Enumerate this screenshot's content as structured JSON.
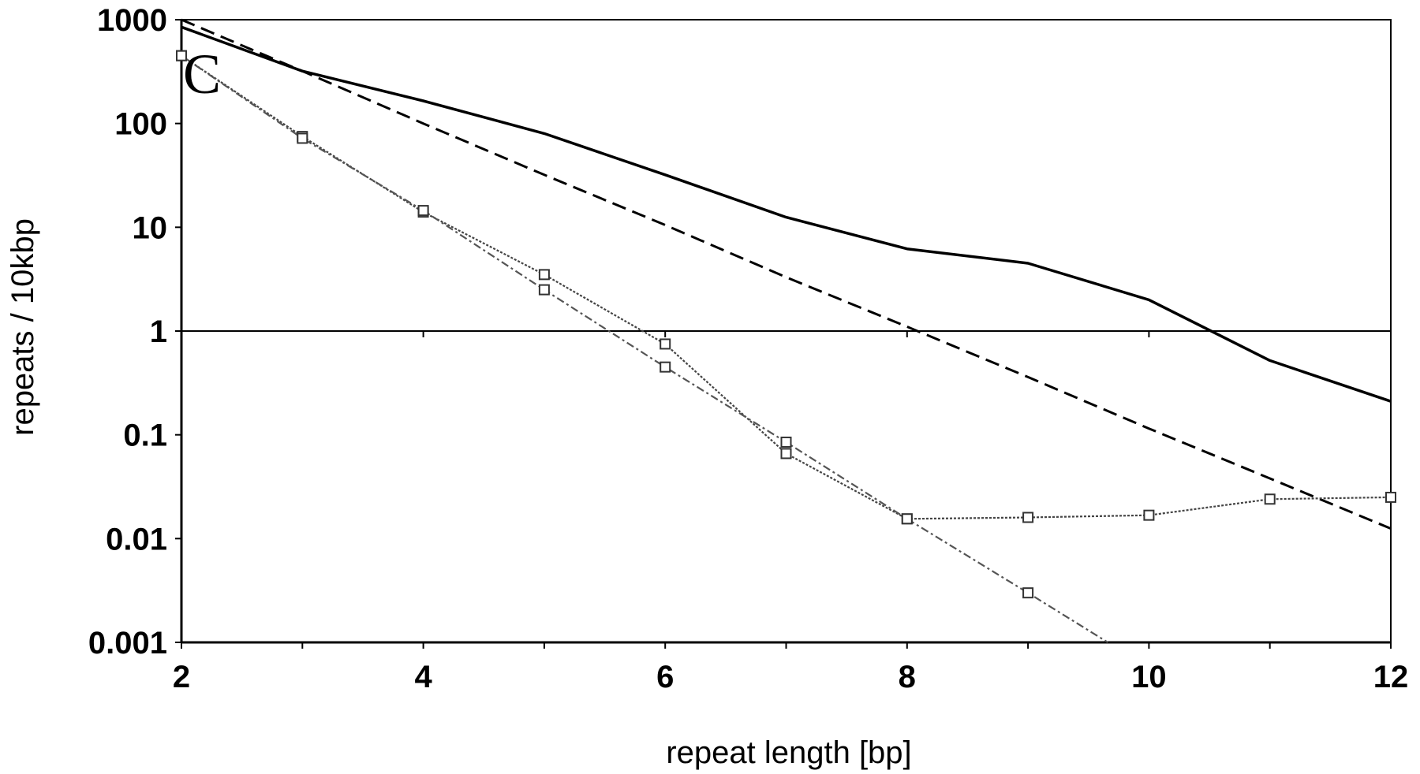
{
  "chart_data": {
    "type": "line",
    "panel_label": "C",
    "xlabel": "repeat length [bp]",
    "ylabel": "repeats / 10kbp",
    "xlim": [
      2,
      12
    ],
    "ylim": [
      0.001,
      1000
    ],
    "y_scale": "log",
    "x_ticks": [
      2,
      4,
      6,
      8,
      10,
      12
    ],
    "x_tick_labels": [
      "2",
      "4",
      "6",
      "8",
      "10",
      "12"
    ],
    "y_ticks": [
      1000,
      100,
      10,
      1,
      0.1,
      0.01,
      0.001
    ],
    "y_tick_labels": [
      "1000",
      "100",
      "10",
      "1",
      "0.1",
      "0.01",
      "0.001"
    ],
    "reference_line": {
      "y": 1
    },
    "grid": false,
    "series": [
      {
        "style": "solid",
        "markers": false,
        "x": [
          2,
          3,
          4,
          5,
          6,
          7,
          8,
          9,
          10,
          11,
          12
        ],
        "y": [
          850,
          320,
          165,
          80,
          32,
          12.5,
          6.2,
          4.5,
          2.0,
          0.52,
          0.21
        ]
      },
      {
        "style": "dashed",
        "markers": false,
        "x": [
          2,
          3,
          4,
          5,
          6,
          7,
          8,
          9,
          10,
          11,
          12
        ],
        "y": [
          1000,
          320,
          100,
          32,
          10.5,
          3.3,
          1.1,
          0.36,
          0.115,
          0.038,
          0.0125
        ]
      },
      {
        "style": "dotted",
        "markers": true,
        "x": [
          2,
          3,
          4,
          5,
          6,
          7,
          8,
          9,
          10,
          11,
          12
        ],
        "y": [
          450,
          75,
          14,
          3.5,
          0.75,
          0.066,
          0.0155,
          0.016,
          0.0168,
          0.024,
          0.025
        ]
      },
      {
        "style": "dash-dot",
        "markers": true,
        "x": [
          2,
          3,
          4,
          5,
          6,
          7,
          8,
          9,
          9.66
        ],
        "y": [
          450,
          72,
          14.5,
          2.5,
          0.45,
          0.085,
          0.0155,
          0.003,
          0.001
        ]
      }
    ]
  }
}
